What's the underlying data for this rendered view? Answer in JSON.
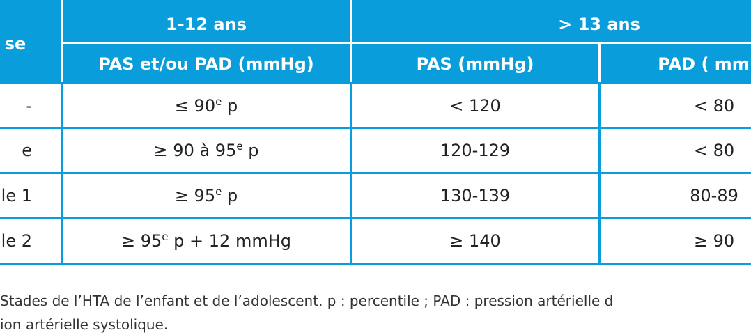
{
  "header": {
    "col1": "se",
    "group1": "1-12 ans",
    "group2": "> 13 ans",
    "sub": [
      "PAS et/ou PAD (mmHg)",
      "PAS (mmHg)",
      "PAD ( mm"
    ]
  },
  "table": {
    "rows": [
      [
        "-",
        {
          "pre": "≤ 90",
          "sup": "e",
          "post": " p"
        },
        "< 120",
        "< 80"
      ],
      [
        "e",
        {
          "pre": "≥ 90 à 95",
          "sup": "e",
          "post": " p"
        },
        "120-129",
        "< 80"
      ],
      [
        "le 1",
        {
          "pre": "≥ 95",
          "sup": "e",
          "post": " p"
        },
        "130-139",
        "80-89"
      ],
      [
        "le 2",
        {
          "pre": "≥ 95",
          "sup": "e",
          "post": " p + 12 mmHg"
        },
        "≥ 140",
        "≥ 90"
      ]
    ]
  },
  "caption": [
    "Stades de l’HTA de l’enfant et de l’adolescent. p : percentile ; PAD : pression artérielle d",
    "ion artérielle systolique."
  ]
}
